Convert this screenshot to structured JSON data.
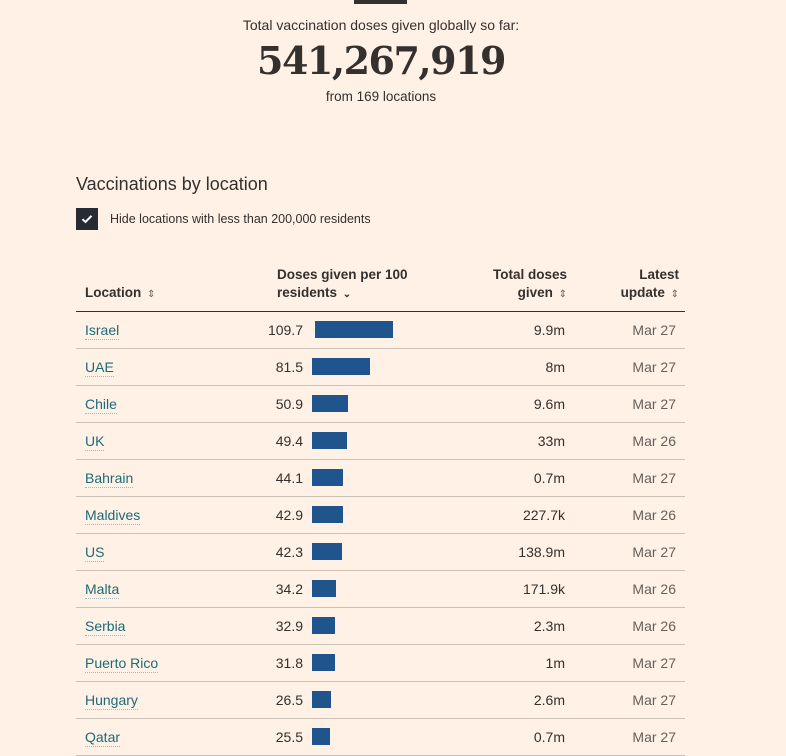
{
  "hero": {
    "label": "Total vaccination doses given globally so far:",
    "total": "541,267,919",
    "sub": "from 169 locations"
  },
  "section": {
    "title": "Vaccinations by location",
    "filter_label": "Hide locations with less than 200,000 residents",
    "filter_checked": true
  },
  "table": {
    "headers": {
      "location": "Location",
      "per100_line1": "Doses given per 100",
      "per100_line2": "residents",
      "total_line1": "Total doses",
      "total_line2": "given",
      "latest_line1": "Latest",
      "latest_line2": "update"
    },
    "sort_icons": {
      "unsorted": "⇕",
      "desc": "⌄"
    }
  },
  "colors": {
    "background": "#fff1e5",
    "bar": "#1f548c",
    "link": "#1c6a78",
    "text": "#33302e"
  },
  "chart_data": {
    "type": "bar",
    "title": "Vaccinations by location",
    "xlabel": "Doses given per 100 residents",
    "categories": [
      "Israel",
      "UAE",
      "Chile",
      "UK",
      "Bahrain",
      "Maldives",
      "US",
      "Malta",
      "Serbia",
      "Puerto Rico",
      "Hungary",
      "Qatar"
    ],
    "values": [
      109.7,
      81.5,
      50.9,
      49.4,
      44.1,
      42.9,
      42.3,
      34.2,
      32.9,
      31.8,
      26.5,
      25.5
    ],
    "total_doses": [
      "9.9m",
      "8m",
      "9.6m",
      "33m",
      "0.7m",
      "227.7k",
      "138.9m",
      "171.9k",
      "2.3m",
      "1m",
      "2.6m",
      "0.7m"
    ],
    "latest_update": [
      "Mar 27",
      "Mar 27",
      "Mar 27",
      "Mar 26",
      "Mar 27",
      "Mar 26",
      "Mar 27",
      "Mar 26",
      "Mar 26",
      "Mar 27",
      "Mar 27",
      "Mar 27"
    ],
    "xlim": [
      0,
      109.7
    ]
  }
}
